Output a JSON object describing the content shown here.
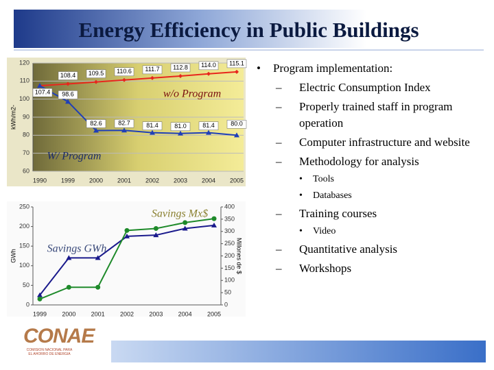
{
  "title": "Energy Efficiency in Public Buildings",
  "chart_data": [
    {
      "type": "line",
      "y_label": "kWh/m2-",
      "categories": [
        "1990",
        "1999",
        "2000",
        "2001",
        "2002",
        "2003",
        "2004",
        "2005"
      ],
      "ylim": [
        60,
        120
      ],
      "yticks": [
        60,
        70,
        80,
        90,
        100,
        110,
        120
      ],
      "annotations": [
        "w/o Program",
        "W/ Program"
      ],
      "series": [
        {
          "name": "w/o Program",
          "color": "#e8261c",
          "marker": "diamond",
          "values": [
            107.4,
            108.4,
            109.5,
            110.6,
            111.7,
            112.8,
            114.0,
            115.1
          ],
          "value_labels": [
            null,
            "108.4",
            "109.5",
            "110.6",
            "111.7",
            "112.8",
            "114.0",
            "115.1"
          ]
        },
        {
          "name": "W/ Program",
          "color": "#1f3fb8",
          "marker": "triangle",
          "values": [
            107.4,
            98.6,
            82.6,
            82.7,
            81.4,
            81.0,
            81.4,
            80.0
          ],
          "value_labels": [
            "107.4",
            "98.6",
            "82.6",
            "82.7",
            "81.4",
            "81.0",
            "81.4",
            "80.0"
          ]
        }
      ]
    },
    {
      "type": "line",
      "y_label": "GWh",
      "y2_label": "Millones de $",
      "categories": [
        "1999",
        "2000",
        "2001",
        "2002",
        "2003",
        "2004",
        "2005"
      ],
      "ylim": [
        0,
        250
      ],
      "yticks": [
        0,
        50,
        100,
        150,
        200,
        250
      ],
      "y2lim": [
        0,
        400
      ],
      "y2ticks": [
        0,
        50,
        100,
        150,
        200,
        250,
        300,
        350,
        400
      ],
      "annotations": [
        "Savings Mx$",
        "Savings GWh"
      ],
      "series": [
        {
          "name": "Savings GWh",
          "color": "#1a1a8c",
          "marker": "triangle",
          "values": [
            25,
            120,
            120,
            175,
            178,
            195,
            203
          ]
        },
        {
          "name": "Savings Mx$",
          "color": "#1e8a2a",
          "marker": "circle",
          "axis": "y2",
          "values": [
            24,
            72,
            72,
            304,
            312,
            336,
            352
          ]
        }
      ]
    }
  ],
  "bullets": [
    {
      "text": "Program implementation:",
      "items": [
        {
          "text": "Electric Consumption Index"
        },
        {
          "text": "Properly trained staff in program operation"
        },
        {
          "text": "Computer infrastructure and website"
        },
        {
          "text": "Methodology for analysis",
          "items": [
            {
              "text": "Tools"
            },
            {
              "text": "Databases"
            }
          ]
        },
        {
          "text": "Training courses",
          "items": [
            {
              "text": "Video"
            }
          ]
        },
        {
          "text": "Quantitative analysis"
        },
        {
          "text": "Workshops"
        }
      ]
    }
  ],
  "logo": {
    "name": "CONAE",
    "subtitle": "COMISION NACIONAL PARA EL AHORRO DE ENERGIA"
  }
}
